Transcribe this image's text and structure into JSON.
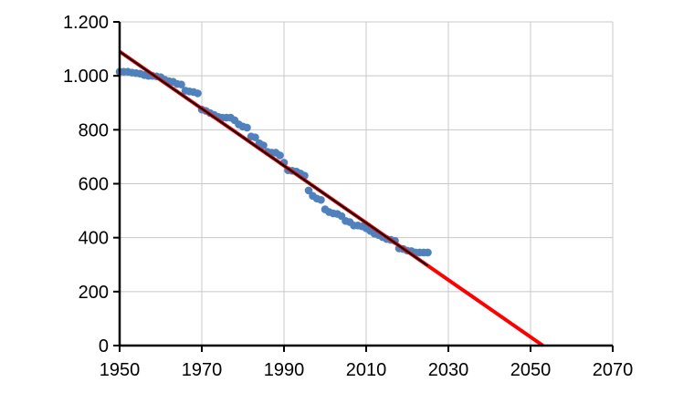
{
  "chart_data": {
    "type": "scatter",
    "title": "",
    "xlabel": "",
    "ylabel": "",
    "xlim": [
      1950,
      2070
    ],
    "ylim": [
      0,
      1200
    ],
    "grid": true,
    "x_ticks": [
      1950,
      1970,
      1990,
      2010,
      2030,
      2050,
      2070
    ],
    "x_tick_labels": [
      "1950",
      "1970",
      "1990",
      "2010",
      "2030",
      "2050",
      "2070"
    ],
    "y_ticks": [
      0,
      200,
      400,
      600,
      800,
      1000,
      1200
    ],
    "y_tick_labels": [
      "0",
      "200",
      "400",
      "600",
      "800",
      "1.000",
      "1.200"
    ],
    "series": [
      {
        "type": "scatter",
        "color": "#4f81bd",
        "x": [
          1950,
          1951,
          1952,
          1953,
          1954,
          1955,
          1956,
          1957,
          1958,
          1959,
          1960,
          1961,
          1962,
          1963,
          1964,
          1965,
          1966,
          1967,
          1968,
          1969,
          1970,
          1971,
          1972,
          1973,
          1974,
          1975,
          1976,
          1977,
          1978,
          1979,
          1980,
          1981,
          1982,
          1983,
          1984,
          1985,
          1986,
          1987,
          1988,
          1989,
          1990,
          1991,
          1992,
          1993,
          1994,
          1995,
          1996,
          1997,
          1998,
          1999,
          2000,
          2001,
          2002,
          2003,
          2004,
          2005,
          2006,
          2007,
          2008,
          2009,
          2010,
          2011,
          2012,
          2013,
          2014,
          2015,
          2016,
          2017,
          2018,
          2019,
          2020,
          2021,
          2022,
          2023,
          2024,
          2025
        ],
        "y": [
          1015,
          1015,
          1015,
          1012,
          1010,
          1008,
          1003,
          1000,
          1000,
          998,
          995,
          985,
          980,
          978,
          970,
          968,
          945,
          942,
          940,
          935,
          875,
          870,
          862,
          855,
          848,
          845,
          845,
          845,
          835,
          820,
          812,
          808,
          775,
          772,
          750,
          742,
          718,
          715,
          715,
          705,
          678,
          650,
          648,
          645,
          638,
          630,
          575,
          555,
          545,
          540,
          505,
          495,
          490,
          488,
          480,
          462,
          458,
          445,
          445,
          442,
          435,
          425,
          415,
          410,
          402,
          395,
          392,
          388,
          360,
          358,
          352,
          350,
          345,
          345,
          345,
          345
        ]
      },
      {
        "type": "line",
        "color": "#ff0000",
        "x": [
          1950,
          2053
        ],
        "y": [
          1090,
          0
        ]
      },
      {
        "type": "line",
        "color": "#000000",
        "x": [
          1950,
          2025
        ],
        "y": [
          1090,
          296
        ]
      }
    ]
  }
}
